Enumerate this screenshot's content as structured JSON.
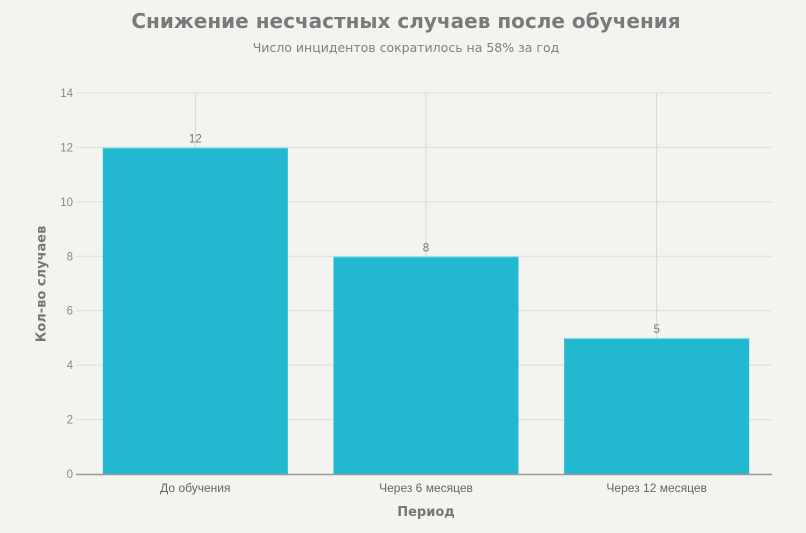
{
  "chart_data": {
    "type": "bar",
    "title": "Снижение несчастных случаев после обучения",
    "subtitle": "Число инцидентов сократилось на 58% за год",
    "xlabel": "Период",
    "ylabel": "Кол-во случаев",
    "categories": [
      "До обучения",
      "Через 6 месяцев",
      "Через 12 месяцев"
    ],
    "values": [
      12,
      8,
      5
    ],
    "data_labels": [
      "12",
      "8",
      "5"
    ],
    "ylim": [
      0,
      14
    ],
    "yticks": [
      0,
      2,
      4,
      6,
      8,
      10,
      12,
      14
    ],
    "grid": true,
    "legend": null,
    "bar_color": "#22b8cf"
  }
}
